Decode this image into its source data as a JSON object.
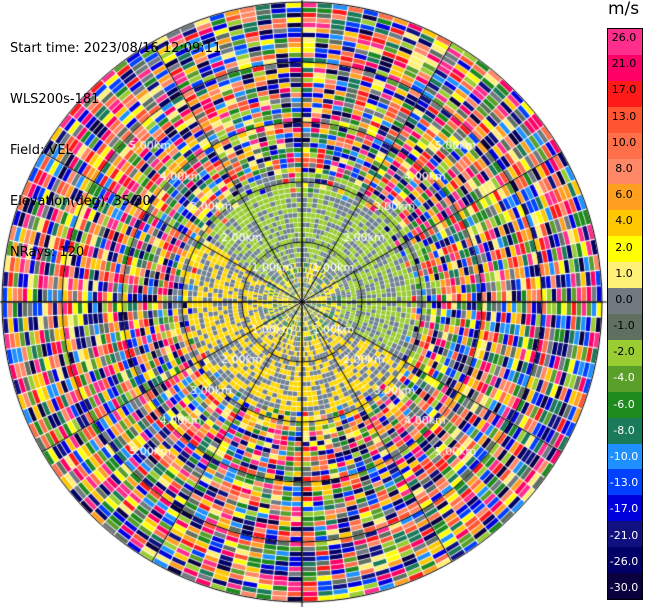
{
  "info": {
    "start_time": "Start time: 2023/08/16 12:09:11",
    "station": "WLS200s-181",
    "field": "Field: VEL",
    "elevation": "Elevation(deg): 35.30",
    "nrays": "NRays: 120"
  },
  "colorbar": {
    "unit": "m/s",
    "ticks": [
      "26.0",
      "21.0",
      "17.0",
      "13.0",
      "10.0",
      "8.0",
      "6.0",
      "4.0",
      "2.0",
      "1.0",
      "0.0",
      "-1.0",
      "-2.0",
      "-4.0",
      "-6.0",
      "-8.0",
      "-10.0",
      "-13.0",
      "-17.0",
      "-21.0",
      "-26.0",
      "-30.0"
    ],
    "colors": [
      "#ff2d8c",
      "#ff0066",
      "#ff1a1a",
      "#ff5533",
      "#ff6f4a",
      "#ff8866",
      "#ffa020",
      "#ffc800",
      "#ffff00",
      "#fff078",
      "#707a80",
      "#607060",
      "#9acd32",
      "#5a9f2a",
      "#1e8a1e",
      "#1a7a5a",
      "#1e90ff",
      "#0040ff",
      "#0000dd",
      "#101080",
      "#000066",
      "#0a0040"
    ]
  },
  "range_labels": [
    "1.00km",
    "2.00km",
    "3.00km",
    "4.00km",
    "5.00km"
  ]
}
